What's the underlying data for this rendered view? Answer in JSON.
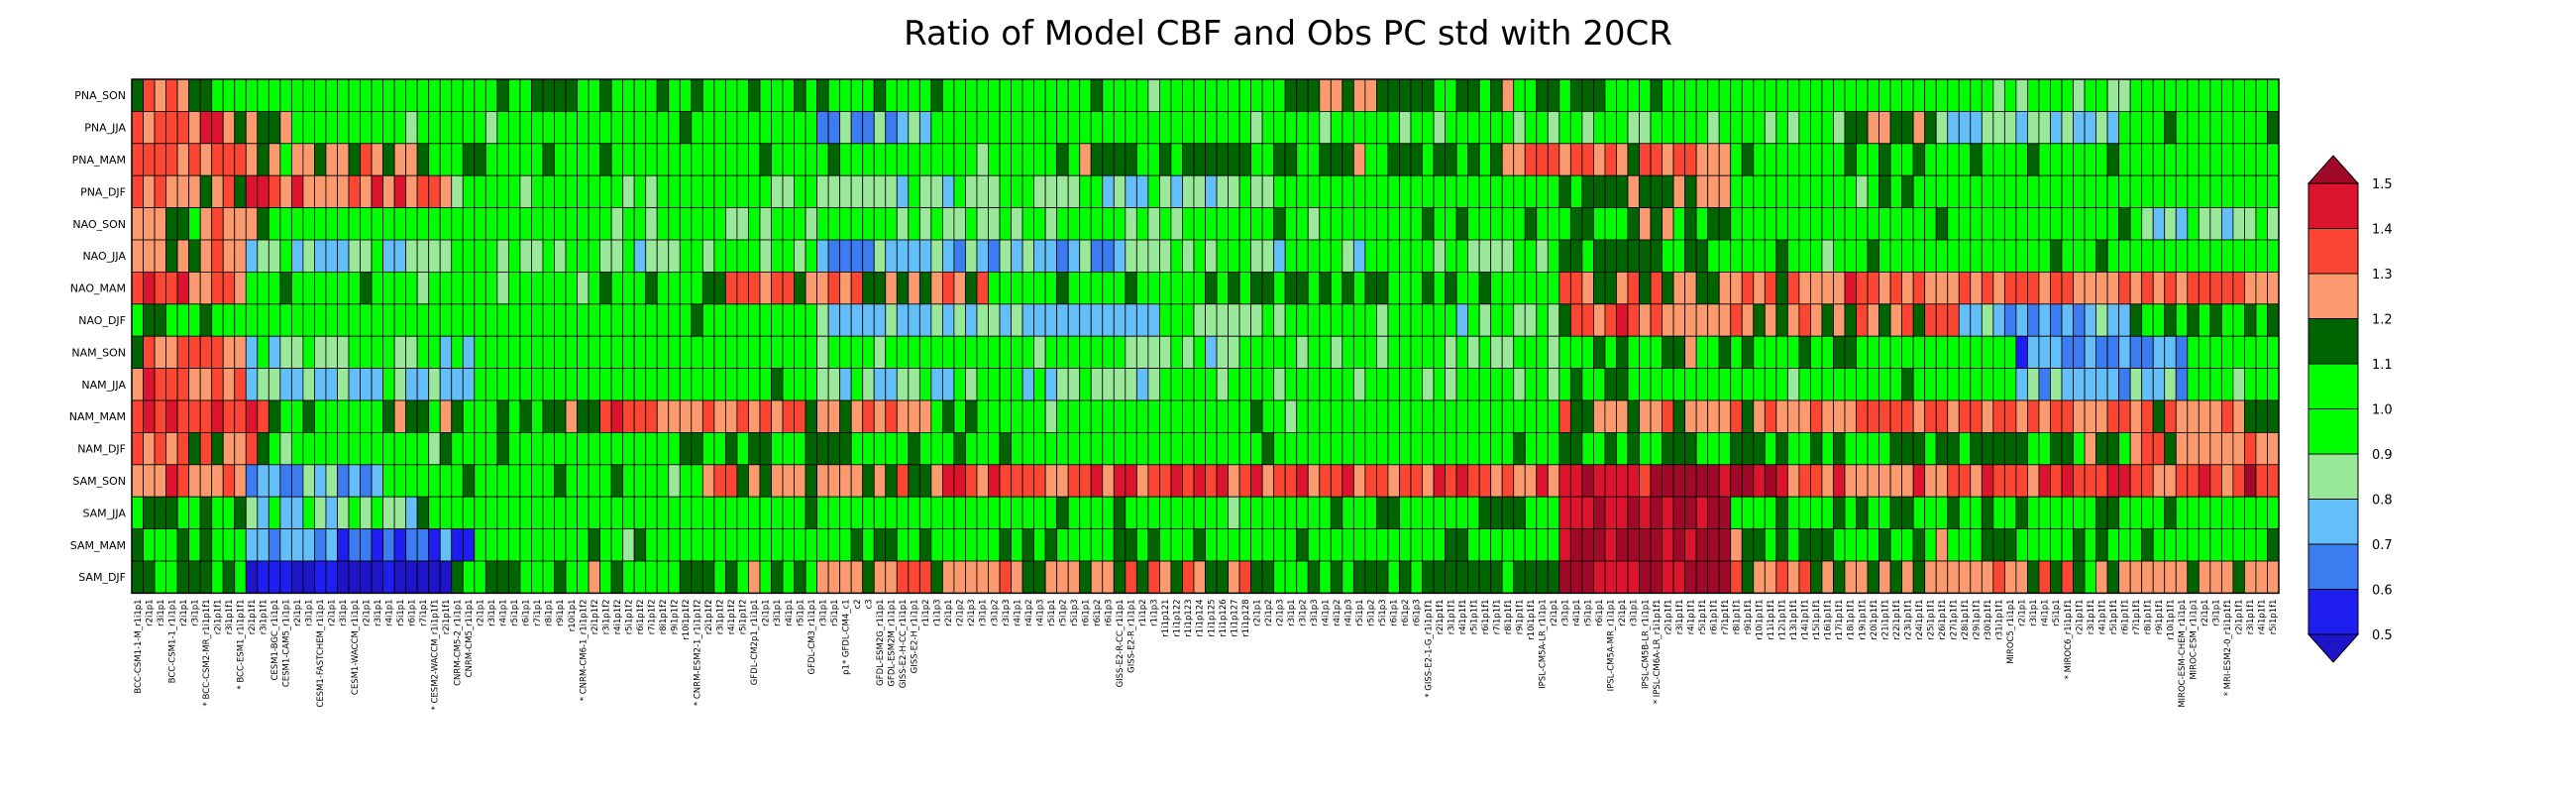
{
  "chart_data": {
    "type": "heatmap",
    "title": "Ratio of Model CBF and Obs PC std with 20CR",
    "rows": [
      "PNA_SON",
      "PNA_JJA",
      "PNA_MAM",
      "PNA_DJF",
      "NAO_SON",
      "NAO_JJA",
      "NAO_MAM",
      "NAO_DJF",
      "NAM_SON",
      "NAM_JJA",
      "NAM_MAM",
      "NAM_DJF",
      "SAM_SON",
      "SAM_JJA",
      "SAM_MAM",
      "SAM_DJF"
    ],
    "columns": [
      "BCC-CSM1-1-M_r1i1p1",
      "r2i1p1",
      "r3i1p1",
      "BCC-CSM1-1_r1i1p1",
      "r2i1p1",
      "r3i1p1",
      "* BCC-CSM2-MR_r1i1p1f1",
      "r2i1p1f1",
      "r3i1p1f1",
      "* BCC-ESM1_r1i1p1f1",
      "r2i1p1f1",
      "r3i1p1f1",
      "CESM1-BGC_r1i1p1",
      "CESM1-CAM5_r1i1p1",
      "r2i1p1",
      "r3i1p1",
      "CESM1-FASTCHEM_r1i1p1",
      "r2i1p1",
      "r3i1p1",
      "CESM1-WACCM_r1i1p1",
      "r2i1p1",
      "r3i1p1",
      "r4i1p1",
      "r5i1p1",
      "r6i1p1",
      "r7i1p1",
      "* CESM2-WACCM_r1i1p1f1",
      "r2i1p1f1",
      "CNRM-CM5-2_r1i1p1",
      "CNRM-CM5_r1i1p1",
      "r2i1p1",
      "r3i1p1",
      "r4i1p1",
      "r5i1p1",
      "r6i1p1",
      "r7i1p1",
      "r8i1p1",
      "r9i1p1",
      "r10i1p1",
      "* CNRM-CM6-1_r1i1p1f2",
      "r2i1p1f2",
      "r3i1p1f2",
      "r4i1p1f2",
      "r5i1p1f2",
      "r6i1p1f2",
      "r7i1p1f2",
      "r8i1p1f2",
      "r9i1p1f2",
      "r10i1p1f2",
      "* CNRM-ESM2-1_r1i1p1f2",
      "r2i1p1f2",
      "r3i1p1f2",
      "r4i1p1f2",
      "r5i1p1f2",
      "GFDL-CM2p1_r1i1p1",
      "r2i1p1",
      "r3i1p1",
      "r4i1p1",
      "r5i1p1",
      "GFDL-CM3_r1i1p1",
      "r3i1p1",
      "r5i1p1",
      "p1* GFDL-CM4_c1",
      "c2",
      "c3",
      "GFDL-ESM2G_r1i1p1",
      "GFDL-ESM2M_r1i1p1",
      "GISS-E2-H-CC_r1i1p1",
      "GISS-E2-H_r1i1p1",
      "r1i1p2",
      "r1i1p3",
      "r2i1p1",
      "r2i1p2",
      "r2i1p3",
      "r3i1p1",
      "r3i1p2",
      "r3i1p3",
      "r4i1p1",
      "r4i1p2",
      "r4i1p3",
      "r5i1p1",
      "r5i1p2",
      "r5i1p3",
      "r6i1p1",
      "r6i1p2",
      "r6i1p3",
      "GISS-E2-R-CC_r1i1p1",
      "GISS-E2-R_r1i1p1",
      "r1i1p2",
      "r1i1p3",
      "r1i1p121",
      "r1i1p122",
      "r1i1p123",
      "r1i1p124",
      "r1i1p125",
      "r1i1p126",
      "r1i1p127",
      "r1i1p128",
      "r2i1p1",
      "r2i1p2",
      "r2i1p3",
      "r3i1p1",
      "r3i1p2",
      "r3i1p3",
      "r4i1p1",
      "r4i1p2",
      "r4i1p3",
      "r5i1p1",
      "r5i1p2",
      "r5i1p3",
      "r6i1p1",
      "r6i1p2",
      "r6i1p3",
      "* GISS-E2-1-G_r1i1p1f1",
      "r2i1p1f1",
      "r3i1p1f1",
      "r4i1p1f1",
      "r5i1p1f1",
      "r6i1p1f1",
      "r7i1p1f1",
      "r8i1p1f1",
      "r9i1p1f1",
      "r10i1p1f1",
      "IPSL-CM5A-LR_r1i1p1",
      "r2i1p1",
      "r3i1p1",
      "r4i1p1",
      "r5i1p1",
      "r6i1p1",
      "IPSL-CM5A-MR_r1i1p1",
      "r2i1p1",
      "r3i1p1",
      "IPSL-CM5B-LR_r1i1p1",
      "* IPSL-CM6A-LR_r1i1p1f1",
      "r2i1p1f1",
      "r3i1p1f1",
      "r4i1p1f1",
      "r5i1p1f1",
      "r6i1p1f1",
      "r7i1p1f1",
      "r8i1p1f1",
      "r9i1p1f1",
      "r10i1p1f1",
      "r11i1p1f1",
      "r12i1p1f1",
      "r13i1p1f1",
      "r14i1p1f1",
      "r15i1p1f1",
      "r16i1p1f1",
      "r17i1p1f1",
      "r18i1p1f1",
      "r19i1p1f1",
      "r20i1p1f1",
      "r21i1p1f1",
      "r22i1p1f1",
      "r23i1p1f1",
      "r24i1p1f1",
      "r25i1p1f1",
      "r26i1p1f1",
      "r27i1p1f1",
      "r28i1p1f1",
      "r29i1p1f1",
      "r30i1p1f1",
      "r31i1p1f1",
      "MIROC5_r1i1p1",
      "r2i1p1",
      "r3i1p1",
      "r4i1p1",
      "r5i1p1",
      "* MIROC6_r1i1p1f1",
      "r2i1p1f1",
      "r3i1p1f1",
      "r4i1p1f1",
      "r5i1p1f1",
      "r6i1p1f1",
      "r7i1p1f1",
      "r8i1p1f1",
      "r9i1p1f1",
      "r10i1p1f1",
      "MIROC-ESM-CHEM_r1i1p1",
      "MIROC-ESM_r1i1p1",
      "r2i1p1",
      "r3i1p1",
      "* MRI-ESM2-0_r1i1p1f1",
      "r2i1p1f1",
      "r3i1p1f1",
      "r4i1p1f1",
      "r5i1p1f1"
    ],
    "colorbar": {
      "levels": [
        0.5,
        0.6,
        0.7,
        0.8,
        0.9,
        1.0,
        1.1,
        1.2,
        1.3,
        1.4,
        1.5
      ],
      "labels": [
        "0.5",
        "0.6",
        "0.7",
        "0.8",
        "0.9",
        "1.0",
        "1.1",
        "1.2",
        "1.3",
        "1.4",
        "1.5"
      ],
      "colors": [
        "#0a0ad6",
        "#1e3cf0",
        "#3c8cf0",
        "#64c3fa",
        "#96e696",
        "#00ff00",
        "#00fa00",
        "#006400",
        "#fa9664",
        "#fa5032",
        "#dc1428",
        "#b40a28"
      ],
      "under_color": "#1e14c8",
      "over_color": "#a00a28"
    },
    "row_profiles": [
      [
        [
          0,
          5,
          1.3
        ],
        [
          5,
          12,
          1.1
        ],
        [
          12,
          30,
          1.0
        ],
        [
          30,
          70,
          1.05
        ],
        [
          70,
          100,
          1.0
        ],
        [
          100,
          130,
          1.1
        ],
        [
          130,
          158,
          1.0
        ],
        [
          158,
          175,
          0.95
        ],
        [
          175,
          196,
          1.0
        ]
      ],
      [
        [
          0,
          8,
          1.35
        ],
        [
          8,
          14,
          1.2
        ],
        [
          14,
          40,
          1.0
        ],
        [
          40,
          60,
          1.0
        ],
        [
          60,
          70,
          0.75
        ],
        [
          70,
          98,
          1.0
        ],
        [
          98,
          150,
          0.95
        ],
        [
          150,
          158,
          1.2
        ],
        [
          158,
          175,
          0.8
        ],
        [
          175,
          196,
          1.0
        ]
      ],
      [
        [
          0,
          10,
          1.3
        ],
        [
          10,
          25,
          1.2
        ],
        [
          25,
          45,
          1.05
        ],
        [
          45,
          80,
          1.0
        ],
        [
          80,
          120,
          1.1
        ],
        [
          120,
          140,
          1.3
        ],
        [
          140,
          158,
          1.05
        ],
        [
          158,
          196,
          1.0
        ]
      ],
      [
        [
          0,
          10,
          1.25
        ],
        [
          10,
          28,
          1.3
        ],
        [
          28,
          60,
          0.95
        ],
        [
          60,
          100,
          0.85
        ],
        [
          100,
          125,
          1.0
        ],
        [
          125,
          140,
          1.2
        ],
        [
          140,
          196,
          1.0
        ]
      ],
      [
        [
          0,
          12,
          1.2
        ],
        [
          12,
          40,
          1.0
        ],
        [
          40,
          96,
          0.95
        ],
        [
          96,
          125,
          1.0
        ],
        [
          125,
          140,
          1.15
        ],
        [
          140,
          175,
          1.0
        ],
        [
          175,
          196,
          0.85
        ]
      ],
      [
        [
          0,
          10,
          1.2
        ],
        [
          10,
          25,
          0.8
        ],
        [
          25,
          60,
          0.9
        ],
        [
          60,
          90,
          0.75
        ],
        [
          90,
          125,
          0.9
        ],
        [
          125,
          140,
          1.1
        ],
        [
          140,
          170,
          1.0
        ],
        [
          170,
          196,
          1.0
        ]
      ],
      [
        [
          0,
          10,
          1.3
        ],
        [
          10,
          50,
          1.0
        ],
        [
          50,
          75,
          1.25
        ],
        [
          75,
          100,
          1.0
        ],
        [
          100,
          125,
          1.05
        ],
        [
          125,
          145,
          1.25
        ],
        [
          145,
          196,
          1.3
        ]
      ],
      [
        [
          0,
          10,
          1.05
        ],
        [
          10,
          40,
          1.0
        ],
        [
          40,
          60,
          1.0
        ],
        [
          60,
          90,
          0.8
        ],
        [
          90,
          125,
          0.9
        ],
        [
          125,
          140,
          1.3
        ],
        [
          140,
          160,
          1.25
        ],
        [
          160,
          175,
          0.75
        ],
        [
          175,
          196,
          1.1
        ]
      ],
      [
        [
          0,
          10,
          1.25
        ],
        [
          10,
          30,
          0.85
        ],
        [
          30,
          60,
          1.0
        ],
        [
          60,
          100,
          0.9
        ],
        [
          100,
          125,
          0.95
        ],
        [
          125,
          150,
          1.1
        ],
        [
          150,
          165,
          1.0
        ],
        [
          165,
          180,
          0.7
        ],
        [
          180,
          196,
          1.0
        ]
      ],
      [
        [
          0,
          10,
          1.3
        ],
        [
          10,
          30,
          0.8
        ],
        [
          30,
          60,
          1.0
        ],
        [
          60,
          90,
          0.85
        ],
        [
          90,
          125,
          0.95
        ],
        [
          125,
          140,
          1.05
        ],
        [
          140,
          165,
          1.0
        ],
        [
          165,
          180,
          0.75
        ],
        [
          180,
          196,
          1.0
        ]
      ],
      [
        [
          0,
          12,
          1.4
        ],
        [
          12,
          40,
          1.1
        ],
        [
          40,
          70,
          1.3
        ],
        [
          70,
          125,
          1.0
        ],
        [
          125,
          145,
          1.25
        ],
        [
          145,
          175,
          1.3
        ],
        [
          175,
          196,
          1.25
        ]
      ],
      [
        [
          0,
          12,
          1.25
        ],
        [
          12,
          40,
          1.0
        ],
        [
          40,
          70,
          1.05
        ],
        [
          70,
          125,
          1.0
        ],
        [
          125,
          145,
          1.1
        ],
        [
          145,
          175,
          1.1
        ],
        [
          175,
          196,
          1.25
        ]
      ],
      [
        [
          0,
          10,
          1.3
        ],
        [
          10,
          22,
          0.7
        ],
        [
          22,
          50,
          1.0
        ],
        [
          50,
          70,
          1.25
        ],
        [
          70,
          125,
          1.35
        ],
        [
          125,
          145,
          1.5
        ],
        [
          145,
          165,
          1.3
        ],
        [
          165,
          185,
          1.35
        ],
        [
          185,
          196,
          1.45
        ]
      ],
      [
        [
          0,
          10,
          1.05
        ],
        [
          10,
          25,
          0.85
        ],
        [
          25,
          60,
          1.0
        ],
        [
          60,
          100,
          1.0
        ],
        [
          100,
          125,
          1.05
        ],
        [
          125,
          140,
          1.5
        ],
        [
          140,
          165,
          1.05
        ],
        [
          165,
          196,
          1.0
        ]
      ],
      [
        [
          0,
          10,
          1.05
        ],
        [
          10,
          18,
          0.7
        ],
        [
          18,
          30,
          0.6
        ],
        [
          30,
          60,
          1.0
        ],
        [
          60,
          100,
          1.05
        ],
        [
          100,
          125,
          1.0
        ],
        [
          125,
          140,
          1.5
        ],
        [
          140,
          165,
          1.1
        ],
        [
          165,
          196,
          1.05
        ]
      ],
      [
        [
          0,
          10,
          1.05
        ],
        [
          10,
          18,
          0.55
        ],
        [
          18,
          28,
          0.45
        ],
        [
          28,
          60,
          1.1
        ],
        [
          60,
          100,
          1.25
        ],
        [
          100,
          125,
          1.1
        ],
        [
          125,
          140,
          1.5
        ],
        [
          140,
          170,
          1.25
        ],
        [
          170,
          196,
          1.2
        ]
      ]
    ]
  }
}
